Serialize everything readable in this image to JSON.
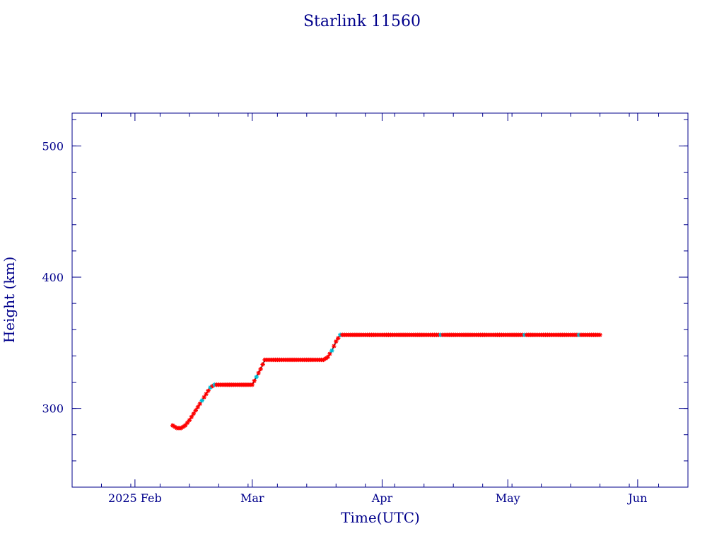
{
  "chart_data": {
    "type": "scatter",
    "title": "Starlink 11560",
    "xlabel": "Time(UTC)",
    "ylabel": "Height (km)",
    "xlim": [
      "2025-01-17",
      "2025-06-13"
    ],
    "ylim": [
      240,
      525
    ],
    "x_ticks": [
      {
        "date": "2025-02-01",
        "label": "2025 Feb"
      },
      {
        "date": "2025-03-01",
        "label": "Mar"
      },
      {
        "date": "2025-04-01",
        "label": "Apr"
      },
      {
        "date": "2025-05-01",
        "label": "May"
      },
      {
        "date": "2025-06-01",
        "label": "Jun"
      }
    ],
    "y_ticks": [
      {
        "value": 300,
        "label": "300"
      },
      {
        "value": 400,
        "label": "400"
      },
      {
        "value": 500,
        "label": "500"
      }
    ],
    "grid": false,
    "colors": {
      "axis": "#00008b",
      "marker": "#ff0000",
      "highlight": "#00bcd4",
      "line": "#000000"
    },
    "series": [
      {
        "points": [
          [
            "2025-02-10",
            287
          ],
          [
            "2025-02-11",
            285
          ],
          [
            "2025-02-12",
            285
          ],
          [
            "2025-02-13",
            287
          ],
          [
            "2025-02-14",
            291
          ],
          [
            "2025-02-15",
            296
          ],
          [
            "2025-02-16",
            301
          ],
          [
            "2025-02-17",
            306
          ],
          [
            "2025-02-18",
            311
          ],
          [
            "2025-02-19",
            316
          ],
          [
            "2025-02-20",
            318
          ],
          [
            "2025-02-21",
            318
          ],
          [
            "2025-02-22",
            318
          ],
          [
            "2025-02-23",
            318
          ],
          [
            "2025-02-24",
            318
          ],
          [
            "2025-02-25",
            318
          ],
          [
            "2025-02-26",
            318
          ],
          [
            "2025-02-27",
            318
          ],
          [
            "2025-02-28",
            318
          ],
          [
            "2025-03-01",
            318
          ],
          [
            "2025-03-02",
            324
          ],
          [
            "2025-03-03",
            330
          ],
          [
            "2025-03-04",
            337
          ],
          [
            "2025-03-05",
            337
          ],
          [
            "2025-03-06",
            337
          ],
          [
            "2025-03-07",
            337
          ],
          [
            "2025-03-08",
            337
          ],
          [
            "2025-03-09",
            337
          ],
          [
            "2025-03-10",
            337
          ],
          [
            "2025-03-11",
            337
          ],
          [
            "2025-03-12",
            337
          ],
          [
            "2025-03-13",
            337
          ],
          [
            "2025-03-14",
            337
          ],
          [
            "2025-03-15",
            337
          ],
          [
            "2025-03-16",
            337
          ],
          [
            "2025-03-17",
            337
          ],
          [
            "2025-03-18",
            337
          ],
          [
            "2025-03-19",
            339
          ],
          [
            "2025-03-20",
            344
          ],
          [
            "2025-03-21",
            351
          ],
          [
            "2025-03-22",
            356
          ],
          [
            "2025-03-23",
            356
          ],
          [
            "2025-03-24",
            356
          ],
          [
            "2025-03-25",
            356
          ],
          [
            "2025-03-26",
            356
          ],
          [
            "2025-03-27",
            356
          ],
          [
            "2025-03-28",
            356
          ],
          [
            "2025-03-29",
            356
          ],
          [
            "2025-03-30",
            356
          ],
          [
            "2025-03-31",
            356
          ],
          [
            "2025-04-01",
            356
          ],
          [
            "2025-04-02",
            356
          ],
          [
            "2025-04-03",
            356
          ],
          [
            "2025-04-04",
            356
          ],
          [
            "2025-04-05",
            356
          ],
          [
            "2025-04-06",
            356
          ],
          [
            "2025-04-07",
            356
          ],
          [
            "2025-04-08",
            356
          ],
          [
            "2025-04-09",
            356
          ],
          [
            "2025-04-10",
            356
          ],
          [
            "2025-04-11",
            356
          ],
          [
            "2025-04-12",
            356
          ],
          [
            "2025-04-13",
            356
          ],
          [
            "2025-04-14",
            356
          ],
          [
            "2025-04-15",
            356
          ],
          [
            "2025-04-16",
            356
          ],
          [
            "2025-04-17",
            356
          ],
          [
            "2025-04-18",
            356
          ],
          [
            "2025-04-19",
            356
          ],
          [
            "2025-04-20",
            356
          ],
          [
            "2025-04-21",
            356
          ],
          [
            "2025-04-22",
            356
          ],
          [
            "2025-04-23",
            356
          ],
          [
            "2025-04-24",
            356
          ],
          [
            "2025-04-25",
            356
          ],
          [
            "2025-04-26",
            356
          ],
          [
            "2025-04-27",
            356
          ],
          [
            "2025-04-28",
            356
          ],
          [
            "2025-04-29",
            356
          ],
          [
            "2025-04-30",
            356
          ],
          [
            "2025-05-01",
            356
          ],
          [
            "2025-05-02",
            356
          ],
          [
            "2025-05-03",
            356
          ],
          [
            "2025-05-04",
            356
          ],
          [
            "2025-05-05",
            356
          ],
          [
            "2025-05-06",
            356
          ],
          [
            "2025-05-07",
            356
          ],
          [
            "2025-05-08",
            356
          ],
          [
            "2025-05-09",
            356
          ],
          [
            "2025-05-10",
            356
          ],
          [
            "2025-05-11",
            356
          ],
          [
            "2025-05-12",
            356
          ],
          [
            "2025-05-13",
            356
          ],
          [
            "2025-05-14",
            356
          ],
          [
            "2025-05-15",
            356
          ],
          [
            "2025-05-16",
            356
          ],
          [
            "2025-05-17",
            356
          ],
          [
            "2025-05-18",
            356
          ],
          [
            "2025-05-19",
            356
          ],
          [
            "2025-05-20",
            356
          ],
          [
            "2025-05-21",
            356
          ],
          [
            "2025-05-22",
            356
          ],
          [
            "2025-05-23",
            356
          ]
        ],
        "highlight_dates": [
          "2025-02-17",
          "2025-02-19",
          "2025-02-20",
          "2025-03-02",
          "2025-03-20",
          "2025-03-22",
          "2025-04-15",
          "2025-05-05",
          "2025-05-18"
        ]
      }
    ]
  }
}
